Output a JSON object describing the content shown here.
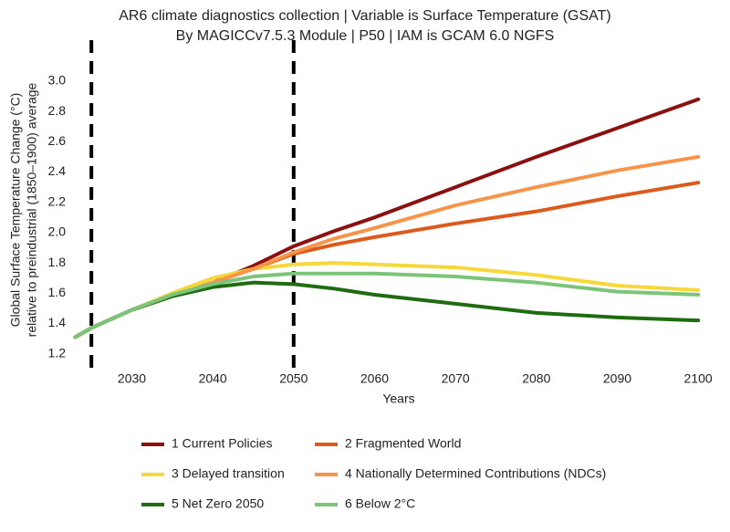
{
  "chart_data": {
    "type": "line",
    "title": "AR6 climate diagnostics collection | Variable is Surface Temperature (GSAT)",
    "subtitle": "By MAGICCv7.5.3 Module | P50 | IAM is GCAM 6.0 NGFS",
    "y_label": [
      "Global Surface Temperature Change (°C)",
      "relative to preindustrial (1850–1900) average"
    ],
    "x_label": "Years",
    "x": [
      2023,
      2025,
      2030,
      2035,
      2040,
      2045,
      2050,
      2055,
      2060,
      2070,
      2080,
      2090,
      2100
    ],
    "series": [
      {
        "name": "1 Current Policies",
        "color": "#8b1010",
        "values": [
          1.31,
          1.37,
          1.49,
          1.58,
          1.67,
          1.78,
          1.91,
          2.01,
          2.1,
          2.3,
          2.5,
          2.69,
          2.88
        ]
      },
      {
        "name": "2 Fragmented World",
        "color": "#dc5a1c",
        "values": [
          1.31,
          1.37,
          1.49,
          1.58,
          1.67,
          1.76,
          1.86,
          1.92,
          1.97,
          2.06,
          2.14,
          2.24,
          2.33
        ]
      },
      {
        "name": "3 Delayed transition",
        "color": "#f6d83a",
        "values": [
          1.31,
          1.37,
          1.49,
          1.6,
          1.7,
          1.76,
          1.79,
          1.8,
          1.79,
          1.77,
          1.72,
          1.65,
          1.62
        ]
      },
      {
        "name": "4 Nationally Determined Contributions (NDCs)",
        "color": "#f7944a",
        "values": [
          1.31,
          1.37,
          1.49,
          1.58,
          1.67,
          1.76,
          1.87,
          1.96,
          2.03,
          2.18,
          2.3,
          2.41,
          2.5
        ]
      },
      {
        "name": "5 Net Zero 2050",
        "color": "#1f6b12",
        "values": [
          1.31,
          1.37,
          1.49,
          1.58,
          1.64,
          1.67,
          1.66,
          1.63,
          1.59,
          1.53,
          1.47,
          1.44,
          1.42
        ]
      },
      {
        "name": "6 Below 2°C",
        "color": "#7cc47a",
        "values": [
          1.31,
          1.37,
          1.49,
          1.59,
          1.66,
          1.71,
          1.73,
          1.73,
          1.73,
          1.71,
          1.67,
          1.61,
          1.59
        ]
      }
    ],
    "xlim": [
      2022.5,
      2101
    ],
    "xticks": [
      2030,
      2040,
      2050,
      2060,
      2070,
      2080,
      2090,
      2100
    ],
    "ylim": [
      1.15,
      3.15
    ],
    "yticks": [
      1.2,
      1.4,
      1.6,
      1.8,
      {
        "value": 2,
        "label": "2.0"
      },
      2.2,
      2.4,
      2.6,
      2.8,
      {
        "value": 3,
        "label": "3.0"
      }
    ],
    "vlines": [
      2025,
      2050
    ],
    "grid": false
  }
}
